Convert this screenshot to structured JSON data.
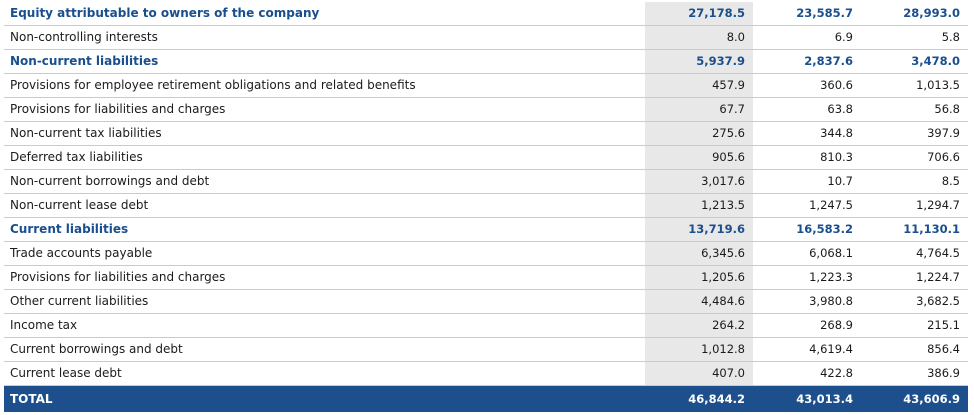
{
  "table": {
    "rows": [
      {
        "label": "Equity attributable to owners of the company",
        "v1": "27,178.5",
        "v2": "23,585.7",
        "v3": "28,993.0",
        "style": "bold"
      },
      {
        "label": "Non-controlling interests",
        "v1": "8.0",
        "v2": "6.9",
        "v3": "5.8",
        "style": "normal"
      },
      {
        "label": "Non-current liabilities",
        "v1": "5,937.9",
        "v2": "2,837.6",
        "v3": "3,478.0",
        "style": "bold"
      },
      {
        "label": "Provisions for employee retirement obligations and related benefits",
        "v1": "457.9",
        "v2": "360.6",
        "v3": "1,013.5",
        "style": "normal"
      },
      {
        "label": "Provisions for liabilities and charges",
        "v1": "67.7",
        "v2": "63.8",
        "v3": "56.8",
        "style": "normal"
      },
      {
        "label": "Non-current tax liabilities",
        "v1": "275.6",
        "v2": "344.8",
        "v3": "397.9",
        "style": "normal"
      },
      {
        "label": "Deferred tax liabilities",
        "v1": "905.6",
        "v2": "810.3",
        "v3": "706.6",
        "style": "normal"
      },
      {
        "label": "Non-current borrowings and debt",
        "v1": "3,017.6",
        "v2": "10.7",
        "v3": "8.5",
        "style": "normal"
      },
      {
        "label": "Non-current lease debt",
        "v1": "1,213.5",
        "v2": "1,247.5",
        "v3": "1,294.7",
        "style": "normal"
      },
      {
        "label": "Current liabilities",
        "v1": "13,719.6",
        "v2": "16,583.2",
        "v3": "11,130.1",
        "style": "bold"
      },
      {
        "label": "Trade accounts payable",
        "v1": "6,345.6",
        "v2": "6,068.1",
        "v3": "4,764.5",
        "style": "normal"
      },
      {
        "label": "Provisions for liabilities and charges",
        "v1": "1,205.6",
        "v2": "1,223.3",
        "v3": "1,224.7",
        "style": "normal"
      },
      {
        "label": "Other current liabilities",
        "v1": "4,484.6",
        "v2": "3,980.8",
        "v3": "3,682.5",
        "style": "normal"
      },
      {
        "label": "Income tax",
        "v1": "264.2",
        "v2": "268.9",
        "v3": "215.1",
        "style": "normal"
      },
      {
        "label": "Current borrowings and debt",
        "v1": "1,012.8",
        "v2": "4,619.4",
        "v3": "856.4",
        "style": "normal"
      },
      {
        "label": "Current lease debt",
        "v1": "407.0",
        "v2": "422.8",
        "v3": "386.9",
        "style": "normal"
      },
      {
        "label": "TOTAL",
        "v1": "46,844.2",
        "v2": "43,013.4",
        "v3": "43,606.9",
        "style": "total"
      }
    ]
  },
  "colors": {
    "heading_text": "#1a4f8f",
    "total_background": "#1d4f8c",
    "highlight_column": "#e8e8e8",
    "row_divider": "#c5ccd6"
  }
}
